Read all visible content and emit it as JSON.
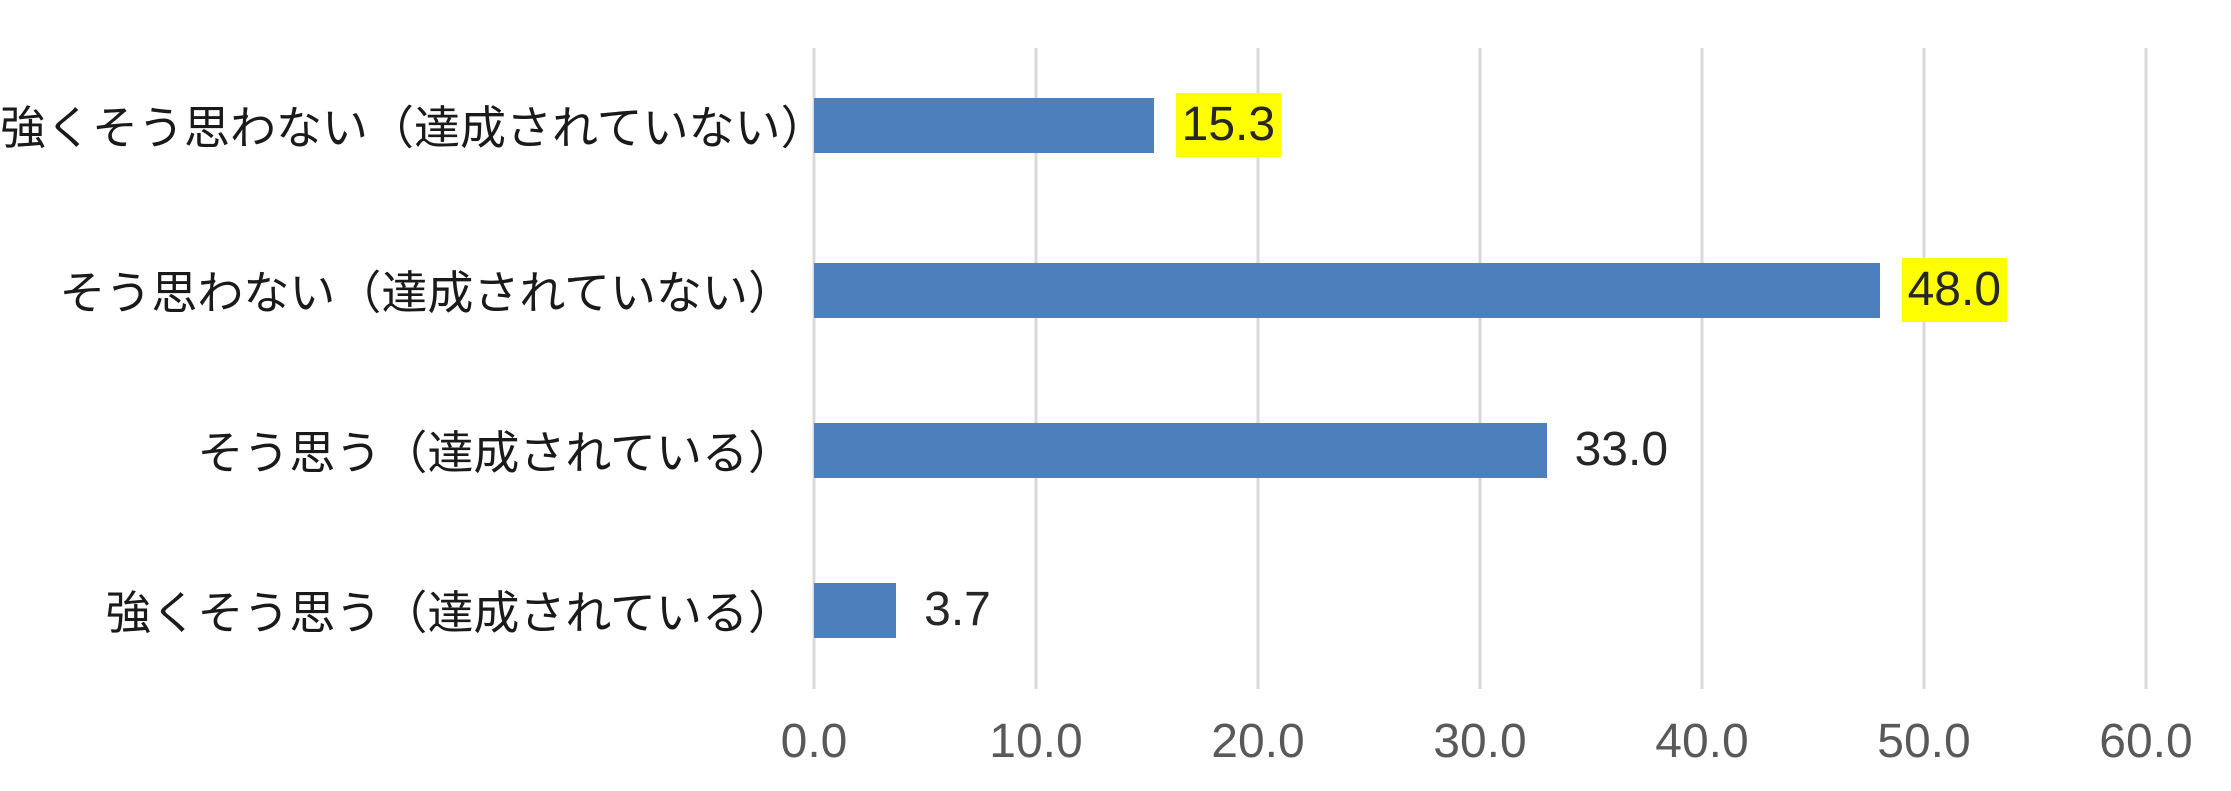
{
  "chart_data": {
    "type": "bar",
    "orientation": "horizontal",
    "title": "",
    "xlabel": "",
    "ylabel": "",
    "categories": [
      "強くそう思わない（達成されていない）",
      "そう思わない（達成されていない）",
      "そう思う（達成されている）",
      "強くそう思う（達成されている）"
    ],
    "values": [
      15.3,
      48.0,
      33.0,
      3.7
    ],
    "value_labels": [
      "15.3",
      "48.0",
      "33.0",
      "3.7"
    ],
    "highlighted": [
      true,
      true,
      false,
      false
    ],
    "xlim": [
      0,
      60
    ],
    "xticks": [
      0,
      10,
      20,
      30,
      40,
      50,
      60
    ],
    "xtick_labels": [
      "0.0",
      "10.0",
      "20.0",
      "30.0",
      "40.0",
      "50.0",
      "60.0"
    ],
    "grid": true,
    "legend": false,
    "colors": {
      "bar": "#4e7fbd",
      "highlight": "#ffff00",
      "grid": "#d9d9d9",
      "tick_text": "#595959",
      "label_text": "#1a1a1a",
      "value_text": "#262626",
      "background": "#ffffff"
    }
  }
}
